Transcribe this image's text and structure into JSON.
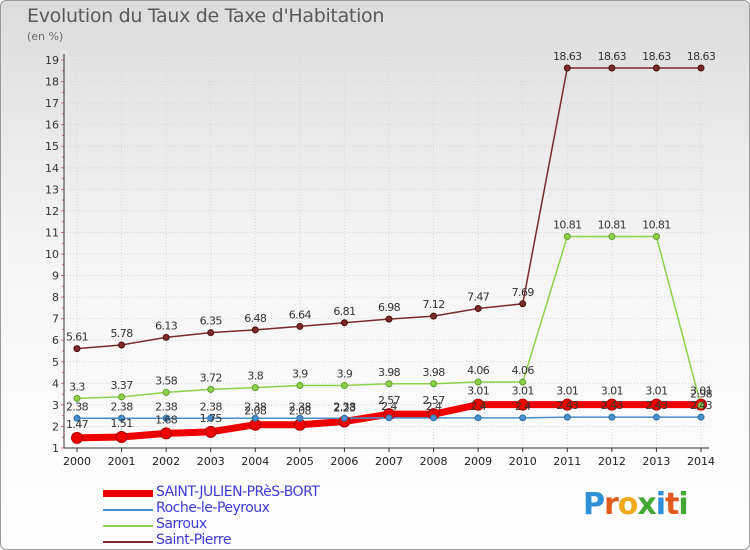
{
  "header": {
    "title": "Evolution du Taux de Taxe d'Habitation",
    "subtitle": "(en %)"
  },
  "brand": {
    "logo_text": "Proxiti"
  },
  "chart_data": {
    "type": "line",
    "title": "Evolution du Taux de Taxe d'Habitation",
    "ylabel": "(en %)",
    "xlabel": "",
    "x": [
      "2000",
      "2001",
      "2002",
      "2003",
      "2004",
      "2005",
      "2006",
      "2007",
      "2008",
      "2009",
      "2010",
      "2011",
      "2012",
      "2013",
      "2014"
    ],
    "ylim": [
      1,
      19
    ],
    "yticks": [
      1,
      2,
      3,
      4,
      5,
      6,
      7,
      8,
      9,
      10,
      11,
      12,
      13,
      14,
      15,
      16,
      17,
      18,
      19
    ],
    "grid": true,
    "legend_position": "bottom-left",
    "series": [
      {
        "name": "SAINT-JULIEN-PRèS-BORT",
        "color": "#ee0000",
        "values": [
          1.47,
          1.51,
          1.68,
          1.75,
          2.08,
          2.08,
          2.23,
          2.57,
          2.57,
          3.01,
          3.01,
          3.01,
          3.01,
          3.01,
          3.01
        ],
        "labels": [
          "1.47",
          "1.51",
          "1.68",
          "1.75",
          "2.08",
          "2.08",
          "2.23",
          "2.57",
          "2.57",
          "3.01",
          "3.01",
          "3.01",
          "3.01",
          "3.01",
          "3.01"
        ]
      },
      {
        "name": "Roche-le-Peyroux",
        "color": "#4a8fc9",
        "values": [
          2.38,
          2.38,
          2.38,
          2.38,
          2.38,
          2.38,
          2.38,
          2.4,
          2.4,
          2.4,
          2.4,
          2.43,
          2.43,
          2.43,
          2.43
        ],
        "labels": [
          "2.38",
          "2.38",
          "2.38",
          "2.38",
          "2.38",
          "2.38",
          "2.38",
          "2.4",
          "2.4",
          "2.4",
          "2.4",
          "2.43",
          "2.43",
          "2.43",
          "2.43"
        ]
      },
      {
        "name": "Sarroux",
        "color": "#8ed14a",
        "values": [
          3.3,
          3.37,
          3.58,
          3.72,
          3.8,
          3.9,
          3.9,
          3.98,
          3.98,
          4.06,
          4.06,
          10.81,
          10.81,
          10.81,
          2.98
        ],
        "labels": [
          "3.3",
          "3.37",
          "3.58",
          "3.72",
          "3.8",
          "3.9",
          "3.9",
          "3.98",
          "3.98",
          "4.06",
          "4.06",
          "10.81",
          "10.81",
          "10.81",
          "2.98"
        ]
      },
      {
        "name": "Saint-Pierre",
        "color": "#7a2a2a",
        "values": [
          5.61,
          5.78,
          6.13,
          6.35,
          6.48,
          6.64,
          6.81,
          6.98,
          7.12,
          7.47,
          7.69,
          18.63,
          18.63,
          18.63,
          18.63
        ],
        "labels": [
          "5.61",
          "5.78",
          "6.13",
          "6.35",
          "6.48",
          "6.64",
          "6.81",
          "6.98",
          "7.12",
          "7.47",
          "7.69",
          "18.63",
          "18.63",
          "18.63",
          "18.63"
        ]
      }
    ]
  }
}
